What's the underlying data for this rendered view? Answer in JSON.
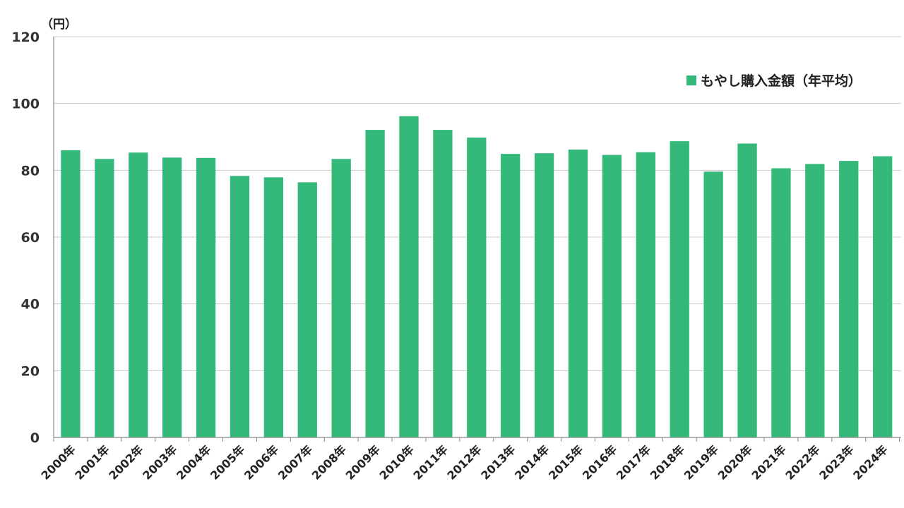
{
  "chart_data": {
    "type": "bar",
    "ylabel": "（円）",
    "ylim": [
      0,
      120
    ],
    "yticks": [
      0,
      20,
      40,
      60,
      80,
      100,
      120
    ],
    "grid": true,
    "legend_position": "top-right",
    "bar_color": "#34b97a",
    "categories": [
      "2000年",
      "2001年",
      "2002年",
      "2003年",
      "2004年",
      "2005年",
      "2006年",
      "2007年",
      "2008年",
      "2009年",
      "2010年",
      "2011年",
      "2012年",
      "2013年",
      "2014年",
      "2015年",
      "2016年",
      "2017年",
      "2018年",
      "2019年",
      "2020年",
      "2021年",
      "2022年",
      "2023年",
      "2024年"
    ],
    "series": [
      {
        "name": "もやし購入金額（年平均）",
        "values": [
          86,
          83.4,
          85.3,
          83.8,
          83.7,
          78.3,
          77.9,
          76.4,
          83.4,
          92.1,
          96.2,
          92.1,
          89.8,
          84.9,
          85.1,
          86.2,
          84.6,
          85.4,
          88.7,
          79.6,
          88.0,
          80.6,
          81.9,
          82.8,
          84.2
        ]
      }
    ]
  }
}
